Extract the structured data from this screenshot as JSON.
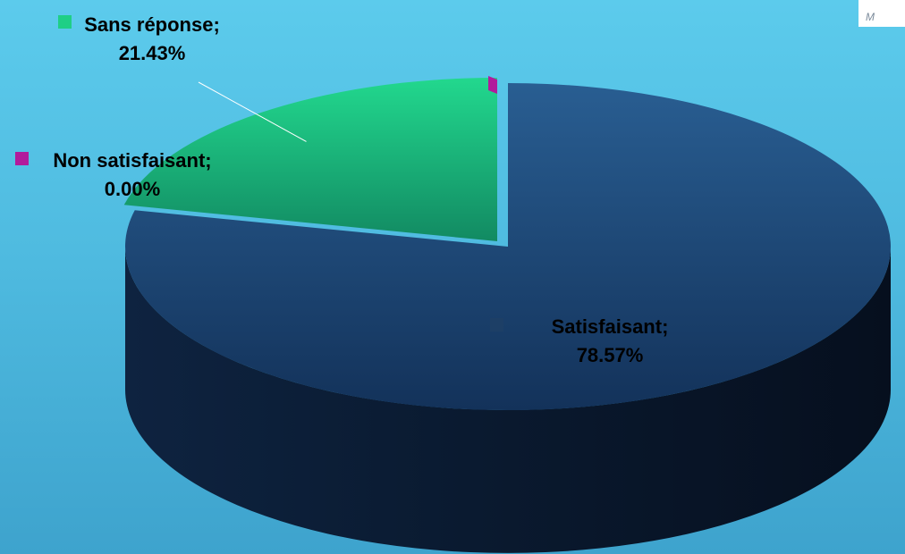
{
  "corner_tab_text": "M",
  "chart_data": {
    "type": "pie",
    "style": "3d",
    "categories": [
      "Satisfaisant",
      "Sans réponse",
      "Non satisfaisant"
    ],
    "values": [
      78.57,
      21.43,
      0.0
    ],
    "labels": [
      {
        "category": "Satisfaisant;",
        "value": "78.57%"
      },
      {
        "category": "Sans réponse;",
        "value": "21.43%"
      },
      {
        "category": "Non satisfaisant;",
        "value": "0.00%"
      }
    ],
    "colors": [
      "#1d3f66",
      "#1fcf86",
      "#b21b9c"
    ],
    "legend": "none",
    "exploded": "Satisfaisant"
  }
}
